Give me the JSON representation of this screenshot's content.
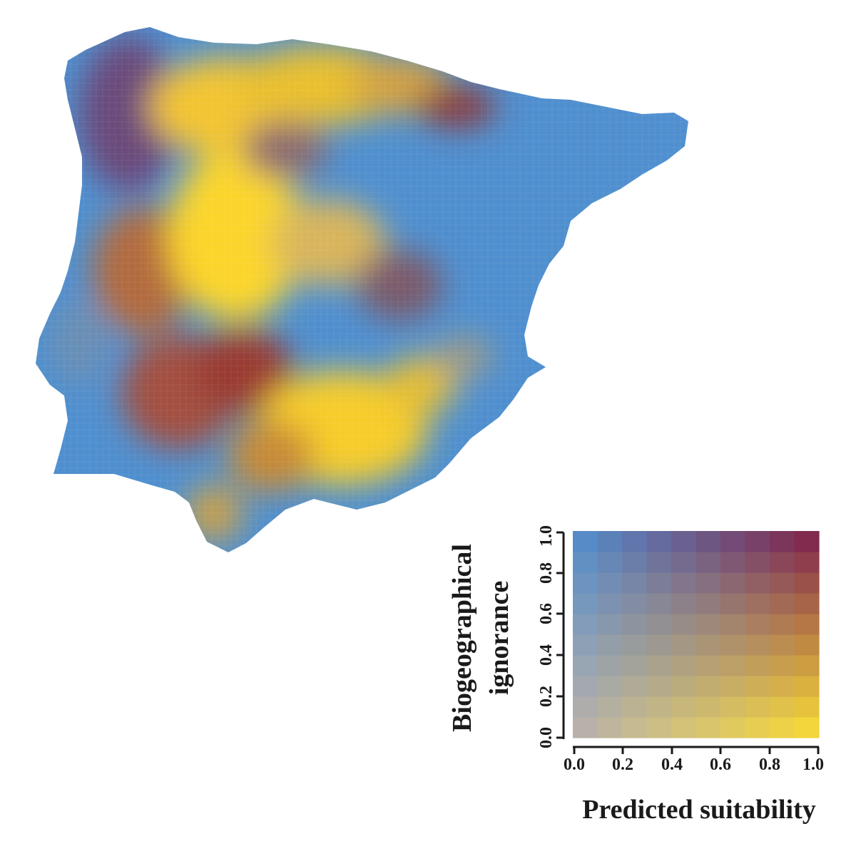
{
  "legend": {
    "x_title": "Predicted suitability",
    "y_title_line1": "Biogeographical",
    "y_title_line2": "ignorance",
    "x_ticks": [
      "0.0",
      "0.2",
      "0.4",
      "0.6",
      "0.8",
      "1.0"
    ],
    "y_ticks": [
      "0.0",
      "0.2",
      "0.4",
      "0.6",
      "0.8",
      "1.0"
    ],
    "x_range": [
      0,
      1
    ],
    "y_range": [
      0,
      1
    ],
    "grid_size": 10,
    "corner_colors": {
      "low_suit_low_ign": "#bbb1ad",
      "high_suit_low_ign": "#fde234",
      "low_suit_high_ign": "#4f8fcf",
      "high_suit_high_ign": "#7d1c48"
    }
  },
  "map": {
    "region": "Iberian Peninsula",
    "regions": [
      {
        "name": "galicia-west-coast",
        "suitability": 0.1,
        "ignorance": 0.7
      },
      {
        "name": "northwest-interior",
        "suitability": 0.9,
        "ignorance": 0.9
      },
      {
        "name": "duero-basin",
        "suitability": 0.95,
        "ignorance": 0.15
      },
      {
        "name": "ebro-valley",
        "suitability": 0.1,
        "ignorance": 0.85
      },
      {
        "name": "central-plateau",
        "suitability": 0.8,
        "ignorance": 0.3
      },
      {
        "name": "southwest",
        "suitability": 0.9,
        "ignorance": 0.7
      },
      {
        "name": "andalusia",
        "suitability": 0.95,
        "ignorance": 0.1
      },
      {
        "name": "eastern-coast",
        "suitability": 0.15,
        "ignorance": 0.75
      }
    ]
  }
}
